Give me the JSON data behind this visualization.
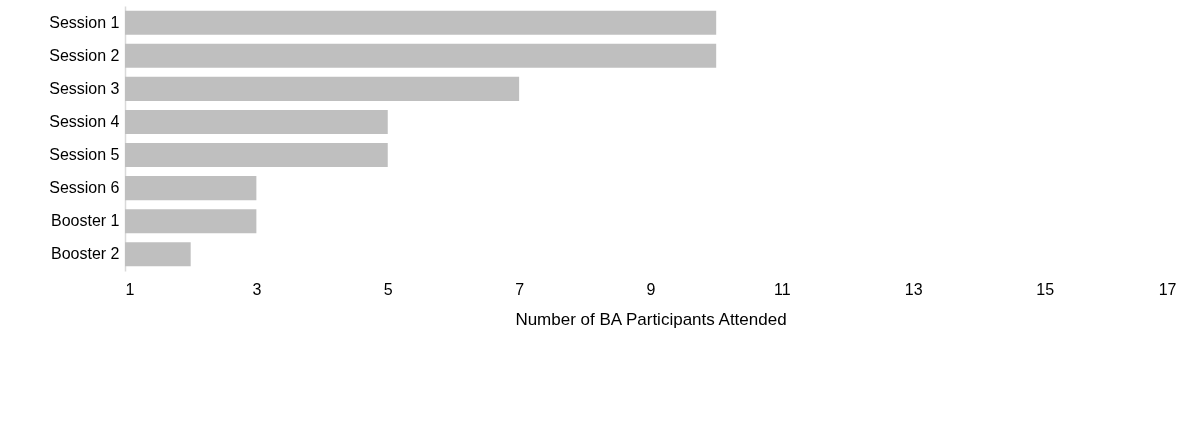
{
  "chart_data": {
    "type": "bar",
    "orientation": "horizontal",
    "xlabel": "Number of BA Participants Attended",
    "categories": [
      "Session 1",
      "Session 2",
      "Session 3",
      "Session 4",
      "Session 5",
      "Session 6",
      "Booster 1",
      "Booster 2"
    ],
    "values": [
      10,
      10,
      7,
      5,
      5,
      3,
      3,
      2
    ],
    "color": "#bfbfbf",
    "xlim": [
      1,
      17
    ],
    "xticks": [
      1,
      3,
      5,
      7,
      9,
      11,
      13,
      15,
      17
    ],
    "grid": false
  }
}
